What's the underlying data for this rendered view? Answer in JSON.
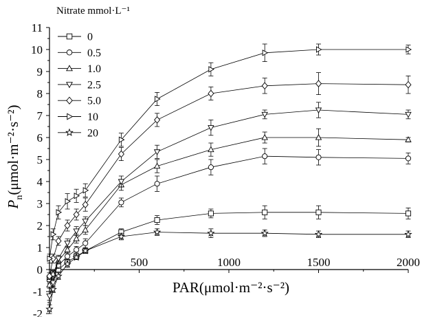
{
  "chart_data": {
    "type": "line",
    "title": "",
    "xlabel": "PAR(μmol·m⁻²·s⁻²)",
    "ylabel": {
      "main": "P",
      "sub": "n",
      "unit": "(μmol·m⁻²·s⁻²)"
    },
    "xlim": [
      0,
      2000
    ],
    "ylim": [
      -2,
      11
    ],
    "x_ticks": [
      500,
      1000,
      1500,
      2000
    ],
    "y_ticks": [
      -2,
      -1,
      0,
      1,
      2,
      3,
      4,
      5,
      6,
      7,
      8,
      9,
      10,
      11
    ],
    "grid": false,
    "legend": {
      "title": "Nitrate mmol·L⁻¹",
      "position": "top-left"
    },
    "x": [
      0,
      20,
      50,
      100,
      150,
      200,
      400,
      600,
      900,
      1200,
      1500,
      2000
    ],
    "series": [
      {
        "name": "0",
        "marker": "square",
        "values": [
          -0.4,
          -0.2,
          0.0,
          0.35,
          0.6,
          0.85,
          1.7,
          2.25,
          2.55,
          2.6,
          2.6,
          2.55
        ],
        "errors": [
          0.15,
          0.15,
          0.1,
          0.1,
          0.1,
          0.1,
          0.15,
          0.2,
          0.2,
          0.3,
          0.3,
          0.25
        ]
      },
      {
        "name": "0.5",
        "marker": "circle",
        "values": [
          -0.5,
          -0.3,
          0.2,
          0.6,
          0.9,
          1.2,
          3.05,
          3.9,
          4.65,
          5.15,
          5.1,
          5.05
        ],
        "errors": [
          0.15,
          0.15,
          0.15,
          0.15,
          0.15,
          0.2,
          0.2,
          0.35,
          0.35,
          0.35,
          0.35,
          0.25
        ]
      },
      {
        "name": "1.0",
        "marker": "triangle-up",
        "values": [
          -0.7,
          -0.2,
          0.4,
          0.9,
          1.4,
          1.8,
          3.85,
          4.7,
          5.45,
          6.0,
          6.0,
          5.9
        ],
        "errors": [
          0.15,
          0.15,
          0.15,
          0.15,
          0.2,
          0.2,
          0.25,
          0.3,
          0.3,
          0.25,
          0.4,
          0.1
        ]
      },
      {
        "name": "2.5",
        "marker": "triangle-down",
        "values": [
          -1.2,
          -0.6,
          0.5,
          1.2,
          1.75,
          2.2,
          4.0,
          5.35,
          6.45,
          7.05,
          7.25,
          7.05
        ],
        "errors": [
          0.2,
          0.2,
          0.15,
          0.2,
          0.2,
          0.2,
          0.25,
          0.3,
          0.35,
          0.2,
          0.35,
          0.2
        ]
      },
      {
        "name": "5.0",
        "marker": "diamond",
        "values": [
          -0.3,
          0.5,
          1.3,
          2.0,
          2.5,
          2.95,
          5.25,
          6.8,
          8.0,
          8.35,
          8.45,
          8.4
        ],
        "errors": [
          0.15,
          0.2,
          0.2,
          0.25,
          0.25,
          0.3,
          0.3,
          0.3,
          0.3,
          0.35,
          0.5,
          0.4
        ]
      },
      {
        "name": "10",
        "marker": "triangle-right",
        "values": [
          0.5,
          1.6,
          2.6,
          3.1,
          3.35,
          3.6,
          5.9,
          7.75,
          9.1,
          9.85,
          10.0,
          10.0
        ],
        "errors": [
          0.2,
          0.25,
          0.3,
          0.35,
          0.3,
          0.3,
          0.3,
          0.3,
          0.3,
          0.4,
          0.25,
          0.2
        ]
      },
      {
        "name": "20",
        "marker": "star",
        "values": [
          -1.8,
          -0.9,
          -0.3,
          0.25,
          0.55,
          0.85,
          1.5,
          1.7,
          1.65,
          1.65,
          1.6,
          1.6
        ],
        "errors": [
          0.2,
          0.15,
          0.15,
          0.15,
          0.1,
          0.1,
          0.15,
          0.15,
          0.2,
          0.15,
          0.15,
          0.15
        ]
      }
    ]
  }
}
